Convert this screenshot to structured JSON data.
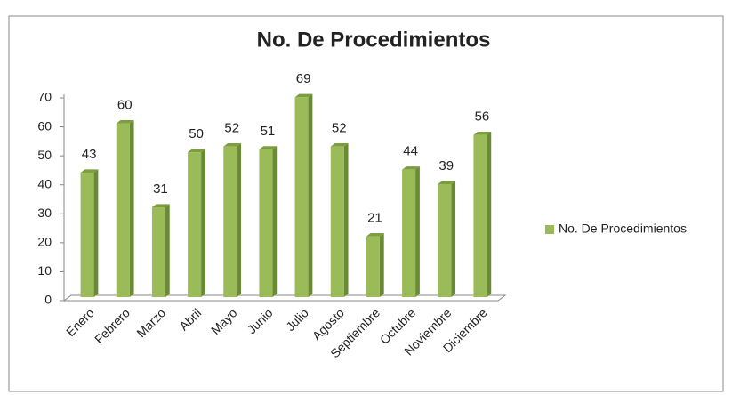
{
  "chart_data": {
    "type": "bar",
    "title": "No. De Procedimientos",
    "categories": [
      "Enero",
      "Febrero",
      "Marzo",
      "Abril",
      "Mayo",
      "Junio",
      "Julio",
      "Agosto",
      "Septiembre",
      "Octubre",
      "Noviembre",
      "Diciembre"
    ],
    "series": [
      {
        "name": "No. De Procedimientos",
        "color": "#9bbb59",
        "values": [
          43,
          60,
          31,
          50,
          52,
          51,
          69,
          52,
          21,
          44,
          39,
          56
        ]
      }
    ],
    "ylim": [
      0,
      70
    ],
    "yticks": [
      0,
      10,
      20,
      30,
      40,
      50,
      60,
      70
    ],
    "grid": false,
    "legend": "right"
  }
}
